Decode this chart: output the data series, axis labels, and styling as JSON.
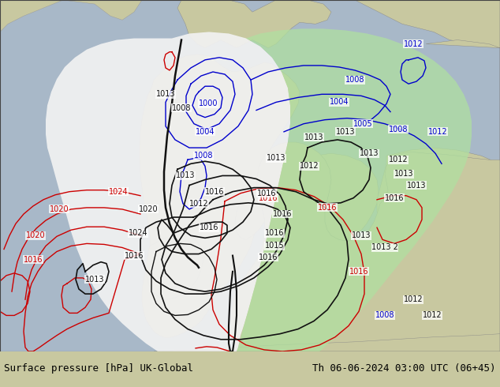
{
  "title_left": "Surface pressure [hPa] UK-Global",
  "title_right": "Th 06-06-2024 03:00 UTC (06+45)",
  "footer_font_size": 9,
  "label_font_size": 7,
  "blue_color": "#0000cc",
  "red_color": "#cc0000",
  "black_color": "#111111",
  "land_color": "#c8c8a0",
  "sea_color": "#a8b8c8",
  "white_cone": "#f2f2f2",
  "green_cone": "#b0e0a0",
  "footer_bg": "#d8d8d8"
}
